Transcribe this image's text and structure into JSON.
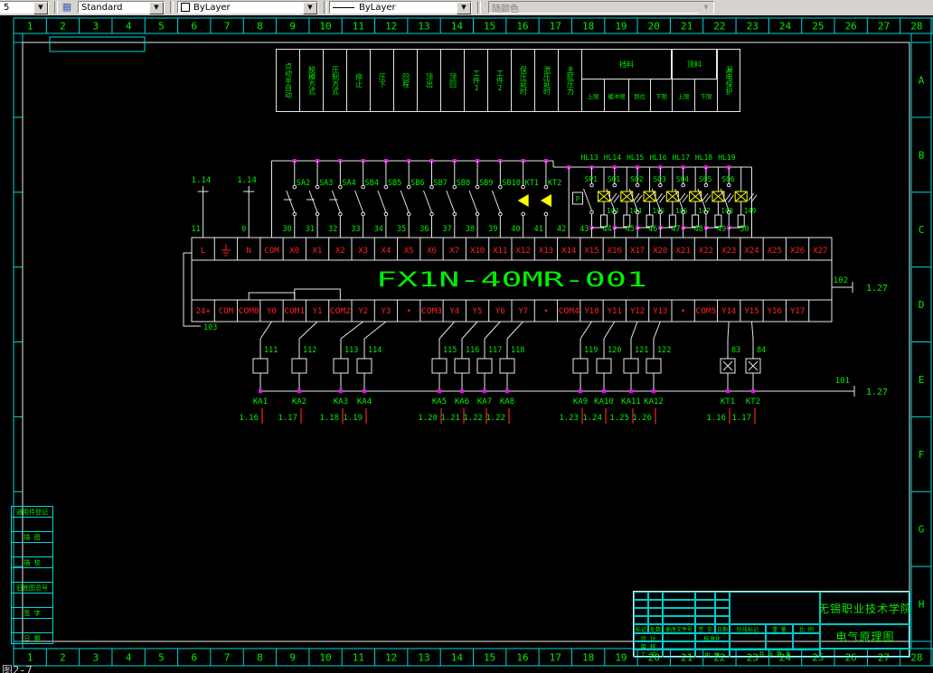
{
  "toolbar": {
    "layer_value": "5",
    "style_value": "Standard",
    "color_value": "ByLayer",
    "linetype_value": "ByLayer",
    "plot_style_value": "随颜色"
  },
  "zones": {
    "top": [
      "1",
      "2",
      "3",
      "4",
      "5",
      "6",
      "7",
      "8",
      "9",
      "10",
      "11",
      "12",
      "13",
      "14",
      "15",
      "16",
      "17",
      "18",
      "19",
      "20",
      "21",
      "22",
      "23",
      "24",
      "25",
      "26",
      "27",
      "28"
    ],
    "bottom": [
      "1",
      "2",
      "3",
      "4",
      "5",
      "6",
      "7",
      "8",
      "9",
      "10",
      "11",
      "12",
      "13",
      "14",
      "15",
      "16",
      "17",
      "18",
      "19",
      "20",
      "21",
      "22",
      "23",
      "24",
      "25",
      "26",
      "27",
      "28"
    ],
    "right": [
      "A",
      "B",
      "C",
      "D",
      "E",
      "F",
      "G",
      "H"
    ]
  },
  "signal_table": {
    "columns": [
      "点动半自动",
      "脱模方式",
      "压制方式",
      "停止",
      "压下",
      "回程",
      "顶出",
      "顶回",
      "工件1",
      "工件2",
      "保压延时",
      "泄压延时",
      "主缸压力"
    ],
    "group1": {
      "title": "挡料",
      "subs": [
        "上限",
        "缓冲限",
        "到位",
        "下限"
      ]
    },
    "group2": {
      "title": "顶料",
      "subs": [
        "上限",
        "下限"
      ]
    },
    "last_column": "漏电保护"
  },
  "plc": {
    "model": "FX1N-40MR-001",
    "input_terminals": [
      "L",
      "⏚",
      "N",
      "COM",
      "X0",
      "X1",
      "X2",
      "X3",
      "X4",
      "X5",
      "X6",
      "X7",
      "X10",
      "X11",
      "X12",
      "X13",
      "X14",
      "X15",
      "X16",
      "X17",
      "X20",
      "X21",
      "X22",
      "X23",
      "X24",
      "X25",
      "X26",
      "X27"
    ],
    "output_terminals": [
      "24+",
      "COM",
      "COM0",
      "Y0",
      "COM1",
      "Y1",
      "COM2",
      "Y2",
      "Y3",
      "•",
      "COM3",
      "Y4",
      "Y5",
      "Y6",
      "Y7",
      "•",
      "COM4",
      "Y10",
      "Y11",
      "Y12",
      "Y13",
      "•",
      "COM5",
      "Y14",
      "Y15",
      "Y16",
      "Y17",
      ""
    ]
  },
  "input_section": {
    "feeds": [
      {
        "ref": "1.14",
        "wire": "11"
      },
      {
        "ref": "1.14",
        "wire": "0"
      }
    ],
    "switches": [
      {
        "name": "SA2",
        "wire": "30"
      },
      {
        "name": "SA3",
        "wire": "31"
      },
      {
        "name": "SA4",
        "wire": "32"
      },
      {
        "name": "SB4",
        "wire": "33"
      },
      {
        "name": "SB5",
        "wire": "34"
      },
      {
        "name": "SB6",
        "wire": "35"
      },
      {
        "name": "SB7",
        "wire": "36"
      },
      {
        "name": "SB8",
        "wire": "37"
      },
      {
        "name": "SB9",
        "wire": "38"
      },
      {
        "name": "SB10",
        "wire": "39"
      },
      {
        "name": "KT1",
        "wire": "40"
      },
      {
        "name": "KT2",
        "wire": "41"
      }
    ],
    "link_wire": "42",
    "sensors": [
      {
        "name": "SP1",
        "wire": "43",
        "lamp": "HL13",
        "lamp_wire": "143"
      },
      {
        "name": "SQ1",
        "wire": "44",
        "lamp": "HL14",
        "lamp_wire": "144"
      },
      {
        "name": "SQ2",
        "wire": "45",
        "lamp": "HL15",
        "lamp_wire": "145"
      },
      {
        "name": "SQ3",
        "wire": "46",
        "lamp": "HL16",
        "lamp_wire": "146"
      },
      {
        "name": "SQ4",
        "wire": "47",
        "lamp": "HL17",
        "lamp_wire": "147"
      },
      {
        "name": "SQ5",
        "wire": "48",
        "lamp": "HL18",
        "lamp_wire": "148"
      },
      {
        "name": "SQ6",
        "wire": "49",
        "lamp": "HL19",
        "lamp_wire": "149"
      }
    ],
    "trailing_wire": "50",
    "left_wire": "103",
    "aux_wire": {
      "number": "102",
      "ref": "1.27"
    }
  },
  "output_section": {
    "relays": [
      {
        "name": "KA1",
        "wire": "111",
        "ref": "1.16",
        "type": "KA"
      },
      {
        "name": "KA2",
        "wire": "112",
        "ref": "1.17",
        "type": "KA"
      },
      {
        "name": "KA3",
        "wire": "113",
        "ref": "1.18",
        "type": "KA"
      },
      {
        "name": "KA4",
        "wire": "114",
        "ref": "1.19",
        "type": "KA"
      },
      {
        "name": "KA5",
        "wire": "115",
        "ref": "1.20",
        "type": "KA"
      },
      {
        "name": "KA6",
        "wire": "116",
        "ref": "1.21",
        "type": "KA"
      },
      {
        "name": "KA7",
        "wire": "117",
        "ref": "1.22",
        "type": "KA"
      },
      {
        "name": "KA8",
        "wire": "118",
        "ref": "1.22",
        "type": "KA"
      },
      {
        "name": "KA9",
        "wire": "119",
        "ref": "1.23",
        "type": "KA"
      },
      {
        "name": "KA10",
        "wire": "120",
        "ref": "1.24",
        "type": "KA"
      },
      {
        "name": "KA11",
        "wire": "121",
        "ref": "1.25",
        "type": "KA"
      },
      {
        "name": "KA12",
        "wire": "122",
        "ref": "1.26",
        "type": "KA"
      },
      {
        "name": "KT1",
        "wire": "83",
        "ref": "1.16",
        "type": "KT"
      },
      {
        "name": "KT2",
        "wire": "84",
        "ref": "1.17",
        "type": "KT"
      }
    ],
    "bus_wire": {
      "number": "101",
      "ref": "1.27"
    }
  },
  "left_margin": [
    "通用件登记",
    "描 图",
    "描 校",
    "旧底图总号",
    "签 字",
    "日 期"
  ],
  "title_block": {
    "organization": "无锡职业技术学院",
    "drawing_title": "电气原理图",
    "header_cells": [
      "标记",
      "处数",
      "更改文件号",
      "签 字",
      "日期"
    ],
    "row_labels": [
      "设 计",
      "审 核",
      "工 艺"
    ],
    "std_label": "标准化",
    "approve_label": "批 准",
    "stage_label": "阶段标记",
    "weight_label": "重 量",
    "scale_label": "比 例",
    "sheet_label": "共 张 第 张"
  },
  "caption": "图2-7",
  "colors": {
    "green": "#00ef00",
    "red": "#ff2020",
    "magenta": "#ff00ff",
    "yellow": "#ffff00",
    "cyan": "#00d8d8",
    "white": "#e8e8e8"
  }
}
